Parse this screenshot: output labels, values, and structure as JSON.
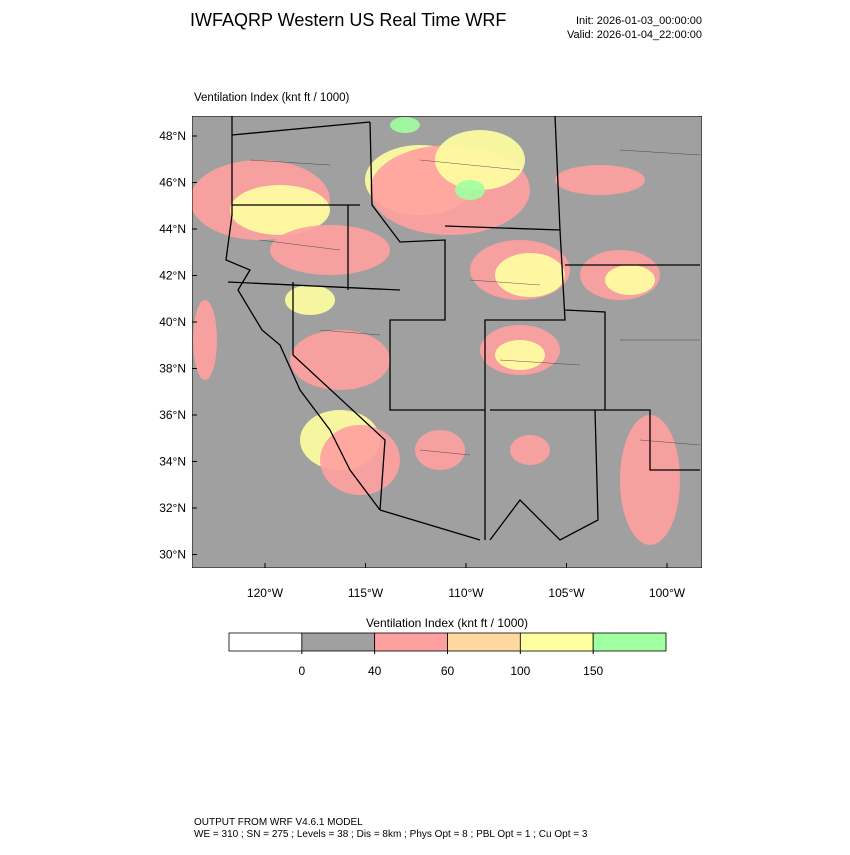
{
  "header": {
    "title": "IWFAQRP Western US Real Time WRF",
    "init": "Init: 2026-01-03_00:00:00",
    "valid": "Valid: 2026-01-04_22:00:00"
  },
  "map": {
    "field_label": "Ventilation Index   (knt ft / 1000)",
    "lat_ticks": [
      {
        "value": 48,
        "label": "48°N"
      },
      {
        "value": 46,
        "label": "46°N"
      },
      {
        "value": 44,
        "label": "44°N"
      },
      {
        "value": 42,
        "label": "42°N"
      },
      {
        "value": 40,
        "label": "40°N"
      },
      {
        "value": 38,
        "label": "38°N"
      },
      {
        "value": 36,
        "label": "36°N"
      },
      {
        "value": 34,
        "label": "34°N"
      },
      {
        "value": 32,
        "label": "32°N"
      },
      {
        "value": 30,
        "label": "30°N"
      }
    ],
    "lon_ticks": [
      {
        "value": -120,
        "label": "120°W"
      },
      {
        "value": -115,
        "label": "115°W"
      },
      {
        "value": -110,
        "label": "110°W"
      },
      {
        "value": -105,
        "label": "105°W"
      },
      {
        "value": -100,
        "label": "100°W"
      }
    ]
  },
  "colorbar": {
    "title": "Ventilation Index   (knt ft / 1000)",
    "colors": [
      "#ffffff",
      "#a0a0a0",
      "#ffa0a0",
      "#ffd8a0",
      "#ffffa0",
      "#a0ffa0"
    ],
    "ticks": [
      0,
      40,
      60,
      100,
      150
    ]
  },
  "footer": {
    "line1": "OUTPUT FROM WRF V4.6.1 MODEL",
    "line2": "WE = 310 ; SN = 275 ; Levels = 38 ; Dis = 8km ; Phys Opt = 8 ; PBL Opt = 1 ; Cu Opt = 3"
  }
}
